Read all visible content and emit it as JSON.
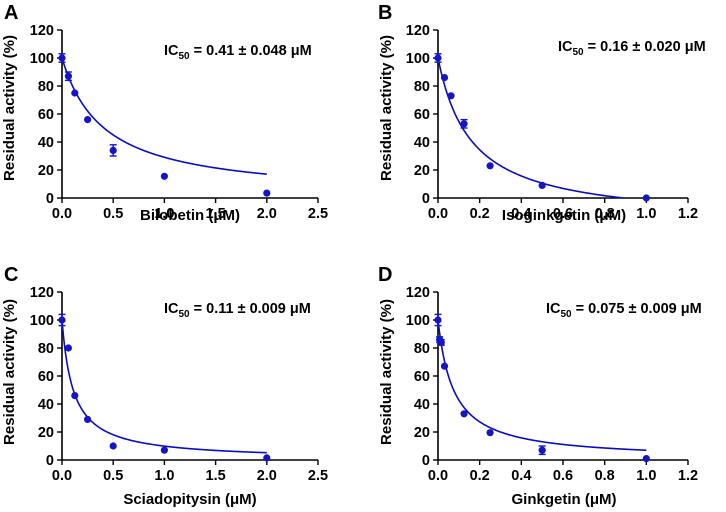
{
  "chart_data": [
    {
      "type": "scatter",
      "panel": "A",
      "xlabel": "Bilobetin (μM)",
      "ylabel": "Residual activity (%)",
      "xlim": [
        0,
        2.5
      ],
      "ylim": [
        0,
        120
      ],
      "xticks": [
        "0.0",
        "0.5",
        "1.0",
        "1.5",
        "2.0",
        "2.5"
      ],
      "yticks": [
        "0",
        "20",
        "40",
        "60",
        "80",
        "100",
        "120"
      ],
      "ic50": {
        "prefix": "IC",
        "sub": "50",
        "value": " = 0.41 ± 0.048 μM"
      },
      "fit": {
        "ic50": 0.41,
        "hill": 1.0
      },
      "x": [
        0,
        0.0625,
        0.125,
        0.25,
        0.5,
        1.0,
        2.0
      ],
      "y": [
        100,
        87,
        75,
        56,
        34,
        15.5,
        3.5
      ],
      "err": [
        3,
        3,
        1,
        1,
        4,
        1,
        1
      ]
    },
    {
      "type": "scatter",
      "panel": "B",
      "xlabel": "Isoginkgetin (μM)",
      "ylabel": "Residual activity (%)",
      "xlim": [
        0,
        1.2
      ],
      "ylim": [
        0,
        120
      ],
      "xticks": [
        "0.0",
        "0.2",
        "0.4",
        "0.6",
        "0.8",
        "1.0",
        "1.2"
      ],
      "yticks": [
        "0",
        "20",
        "40",
        "60",
        "80",
        "100",
        "120"
      ],
      "ic50": {
        "prefix": "IC",
        "sub": "50",
        "value": " = 0.16 ± 0.020 μM"
      },
      "fit": {
        "ic50": 0.16,
        "hill": 1.0,
        "baseline": -18
      },
      "x": [
        0,
        0.03125,
        0.0625,
        0.125,
        0.25,
        0.5,
        1.0
      ],
      "y": [
        100,
        86,
        73,
        53,
        23,
        9,
        0
      ],
      "err": [
        3,
        1,
        1,
        3,
        1,
        1,
        1
      ]
    },
    {
      "type": "scatter",
      "panel": "C",
      "xlabel": "Sciadopitysin (μM)",
      "ylabel": "Residual activity (%)",
      "xlim": [
        0,
        2.5
      ],
      "ylim": [
        0,
        120
      ],
      "xticks": [
        "0.0",
        "0.5",
        "1.0",
        "1.5",
        "2.0",
        "2.5"
      ],
      "yticks": [
        "0",
        "20",
        "40",
        "60",
        "80",
        "100",
        "120"
      ],
      "ic50": {
        "prefix": "IC",
        "sub": "50",
        "value": " = 0.11 ± 0.009 μM"
      },
      "fit": {
        "ic50": 0.11,
        "hill": 1.0
      },
      "x": [
        0,
        0.0625,
        0.125,
        0.25,
        0.5,
        1.0,
        2.0
      ],
      "y": [
        100,
        80,
        46,
        29,
        10,
        7,
        1.5
      ],
      "err": [
        4,
        1,
        1,
        1,
        1,
        1,
        1
      ]
    },
    {
      "type": "scatter",
      "panel": "D",
      "xlabel": "Ginkgetin  (μM)",
      "ylabel": "Residual activity (%)",
      "xlim": [
        0,
        1.2
      ],
      "ylim": [
        0,
        120
      ],
      "xticks": [
        "0.0",
        "0.2",
        "0.4",
        "0.6",
        "0.8",
        "1.0",
        "1.2"
      ],
      "yticks": [
        "0",
        "20",
        "40",
        "60",
        "80",
        "100",
        "120"
      ],
      "ic50": {
        "prefix": "IC",
        "sub": "50",
        "value": " = 0.075 ± 0.009 μM"
      },
      "fit": {
        "ic50": 0.075,
        "hill": 1.0
      },
      "x": [
        0,
        0.0078,
        0.0156,
        0.03125,
        0.125,
        0.25,
        0.5,
        1.0
      ],
      "y": [
        100,
        86,
        84,
        67,
        33,
        19.5,
        7,
        1
      ],
      "err": [
        4,
        2,
        2,
        1,
        1,
        1,
        3,
        1
      ]
    }
  ]
}
